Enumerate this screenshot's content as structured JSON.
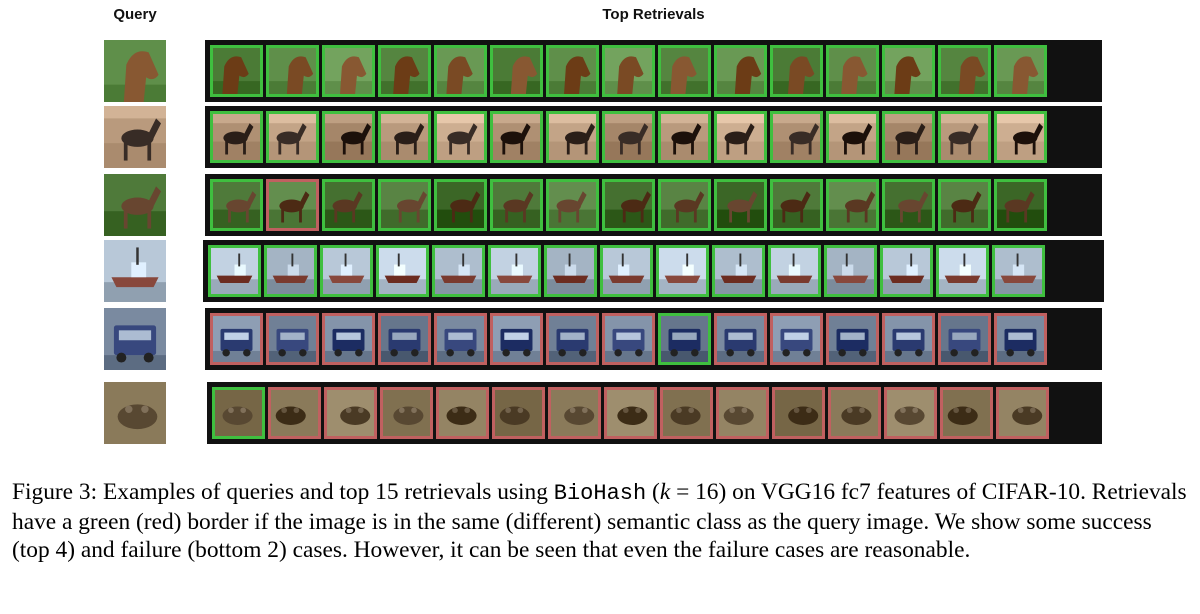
{
  "header": {
    "query": "Query",
    "top": "Top Retrievals"
  },
  "colors": {
    "match": "#3fbf3f",
    "mismatch": "#c06060"
  },
  "rows": [
    {
      "subject": "horse-head",
      "bg": "#5f8f4a",
      "fg": "#7a4a24",
      "results": "GGGGGGGGGGGGGGG"
    },
    {
      "subject": "horse-rider",
      "bg": "#b99a7d",
      "fg": "#2a1e18",
      "results": "GGGGGGGGGGGGGGG"
    },
    {
      "subject": "horse-grazing",
      "bg": "#4f7a3a",
      "fg": "#5a3822",
      "results": "GRGGGGGGGGGGGGG"
    },
    {
      "subject": "ship",
      "bg": "#b8c8d8",
      "fg": "#7a3a2e",
      "results": "GGGGGGGGGGGGGGG"
    },
    {
      "subject": "truck",
      "bg": "#7a8aa0",
      "fg": "#2a3a70",
      "results": "RRRRRRRRGRRRRRR"
    },
    {
      "subject": "frog",
      "bg": "#8a7a5a",
      "fg": "#4a3a24",
      "results": "GRRRRRRRRRRRRRR"
    }
  ],
  "caption": {
    "p1": "Figure 3: Examples of queries and top 15 retrievals using ",
    "mono": "BioHash",
    "p2": " (",
    "k": "k",
    "p3": " = 16) on VGG16 fc7 features of CIFAR-10. Retrievals have a green (red) border if the image is in the same (different) semantic class as the query image. We show some success (top 4) and failure (bottom 2) cases. However, it can be seen that even the failure cases are reasonable."
  }
}
